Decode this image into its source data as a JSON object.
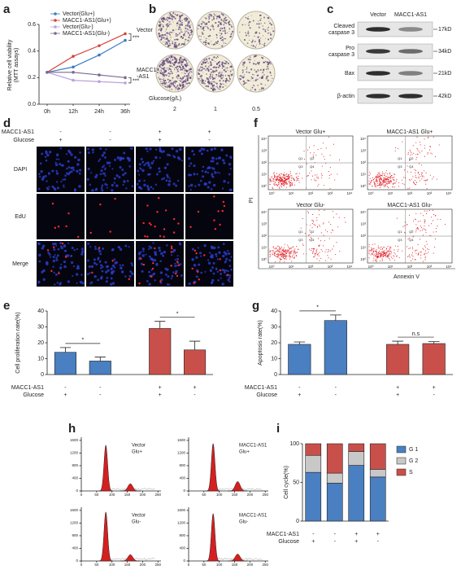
{
  "panel_labels": [
    "a",
    "b",
    "c",
    "d",
    "e",
    "f",
    "g",
    "h",
    "i"
  ],
  "chart_data": [
    {
      "type": "line",
      "categories": [
        "0h",
        "12h",
        "24h",
        "36h"
      ],
      "ylabel": [
        "Relative cell viability",
        "(MTT assays)"
      ],
      "ylim": [
        0,
        0.6
      ],
      "yticks": [
        {
          "value": 0,
          "label": "0.0"
        },
        0.2,
        0.4,
        0.6
      ],
      "series": [
        {
          "name": "Vector(Glu+)",
          "color": "#3b7cc4",
          "values": [
            0.24,
            0.28,
            0.37,
            0.48
          ]
        },
        {
          "name": "MACC1-AS1(Glu+)",
          "color": "#d6453d",
          "values": [
            0.24,
            0.36,
            0.44,
            0.53
          ]
        },
        {
          "name": "Vector(Glu-)",
          "color": "#b9a3d9",
          "values": [
            0.24,
            0.18,
            0.17,
            0.16
          ]
        },
        {
          "name": "MACC1-AS1(Glu-)",
          "color": "#7a6a8f",
          "values": [
            0.24,
            0.24,
            0.22,
            0.2
          ]
        }
      ],
      "annotations": [
        "***",
        "***"
      ]
    },
    {
      "type": "bar",
      "ylabel": "Cell proliferation rate(%)",
      "ylim": [
        0,
        40
      ],
      "yticks": [
        0,
        10,
        20,
        30,
        40
      ],
      "values": [
        14,
        8.5,
        29,
        15.5
      ],
      "errors": [
        3,
        2.5,
        4.5,
        5.5
      ],
      "colors": [
        "#4a7fc1",
        "#4a7fc1",
        "#c9504a",
        "#c9504a"
      ],
      "annotations": [
        "*",
        "*"
      ],
      "rows": [
        {
          "label": "MACC1-AS1",
          "values": [
            "-",
            "-",
            "+",
            "+"
          ]
        },
        {
          "label": "Glucose",
          "values": [
            "+",
            "-",
            "+",
            "-"
          ]
        }
      ]
    },
    {
      "type": "bar",
      "ylabel": "Apoptosis rate(%)",
      "ylim": [
        0,
        40
      ],
      "yticks": [
        0,
        10,
        20,
        30,
        40
      ],
      "values": [
        19,
        34,
        19,
        19.5
      ],
      "errors": [
        1.5,
        3.5,
        2,
        1.2
      ],
      "colors": [
        "#4a7fc1",
        "#4a7fc1",
        "#c9504a",
        "#c9504a"
      ],
      "annotations": [
        "*",
        "n.s"
      ],
      "rows": [
        {
          "label": "MACC1-AS1",
          "values": [
            "-",
            "-",
            "+",
            "+"
          ]
        },
        {
          "label": "Glucose",
          "values": [
            "+",
            "-",
            "+",
            "-"
          ]
        }
      ]
    },
    {
      "type": "stacked",
      "ylabel": "Cell cycle(%)",
      "ylim": [
        0,
        100
      ],
      "yticks": [
        0,
        50,
        100
      ],
      "series": [
        {
          "name": "G 1",
          "color": "#4a7fc1",
          "values": [
            63,
            49,
            72,
            57
          ]
        },
        {
          "name": "G 2",
          "color": "#c8c8c8",
          "values": [
            22,
            13,
            18,
            10
          ]
        },
        {
          "name": "S",
          "color": "#c9504a",
          "values": [
            15,
            38,
            10,
            33
          ]
        }
      ],
      "rows": [
        {
          "label": "MACC1-AS1",
          "values": [
            "-",
            "-",
            "+",
            "+"
          ]
        },
        {
          "label": "Glucose",
          "values": [
            "+",
            "-",
            "+",
            "-"
          ]
        }
      ]
    }
  ],
  "colony_assay": {
    "rows": [
      [
        "Vector"
      ],
      [
        "MACC1",
        "-AS1"
      ]
    ],
    "xlabel": "Glucose(g/L)",
    "columns": [
      "2",
      "1",
      "0.5"
    ]
  },
  "western_blot": {
    "columns": [
      "Vector",
      "MACC1-AS1"
    ],
    "rows": [
      {
        "label": [
          "Cleaved",
          "caspase 3"
        ],
        "size": "17kD"
      },
      {
        "label": [
          "Pro",
          "caspase 3"
        ],
        "size": "34kD"
      },
      {
        "label": [
          "Bax"
        ],
        "size": "21kD"
      },
      {
        "label": [
          "β-actin"
        ],
        "size": "42kD"
      }
    ]
  },
  "edu_assay": {
    "conditions": [
      {
        "label": "MACC1-AS1",
        "values": [
          "-",
          "-",
          "+",
          "+"
        ]
      },
      {
        "label": "Glucose",
        "values": [
          "+",
          "-",
          "+",
          "-"
        ]
      }
    ],
    "rows": [
      "DAPI",
      "EdU",
      "Merge"
    ]
  },
  "apoptosis_flow": {
    "plots": [
      "Vector Glu+",
      "MACC1-AS1 Glu+",
      "Vector Glu-",
      "MACC1-AS1 Glu-"
    ],
    "ylabel": "PI",
    "xlabel": "Annexin V",
    "axis_ticks": [
      "10⁰",
      "10¹",
      "10²",
      "10³",
      "10⁴"
    ],
    "quadrants": [
      "Q1",
      "Q2",
      "Q3",
      "Q4"
    ]
  },
  "cell_cycle_histograms": {
    "xlim": [
      0,
      260
    ],
    "ylim": [
      0,
      1700
    ],
    "xticks": [
      0,
      50,
      100,
      150,
      200,
      250
    ],
    "yticks": [
      0,
      400,
      800,
      1200,
      1600
    ],
    "plots": [
      {
        "label": [
          "Vector",
          "Glu+"
        ],
        "peaks": [
          {
            "x": 80,
            "count": 1450
          },
          {
            "x": 160,
            "count": 230
          }
        ]
      },
      {
        "label": [
          "MACC1-AS1",
          "Glu+"
        ],
        "peaks": [
          {
            "x": 80,
            "count": 1500
          },
          {
            "x": 160,
            "count": 300
          }
        ]
      },
      {
        "label": [
          "Vector",
          "Glu-"
        ],
        "peaks": [
          {
            "x": 80,
            "count": 1550
          },
          {
            "x": 160,
            "count": 200
          }
        ]
      },
      {
        "label": [
          "MACC1-AS1",
          "Glu-"
        ],
        "peaks": [
          {
            "x": 80,
            "count": 1500
          },
          {
            "x": 160,
            "count": 220
          }
        ]
      }
    ]
  }
}
